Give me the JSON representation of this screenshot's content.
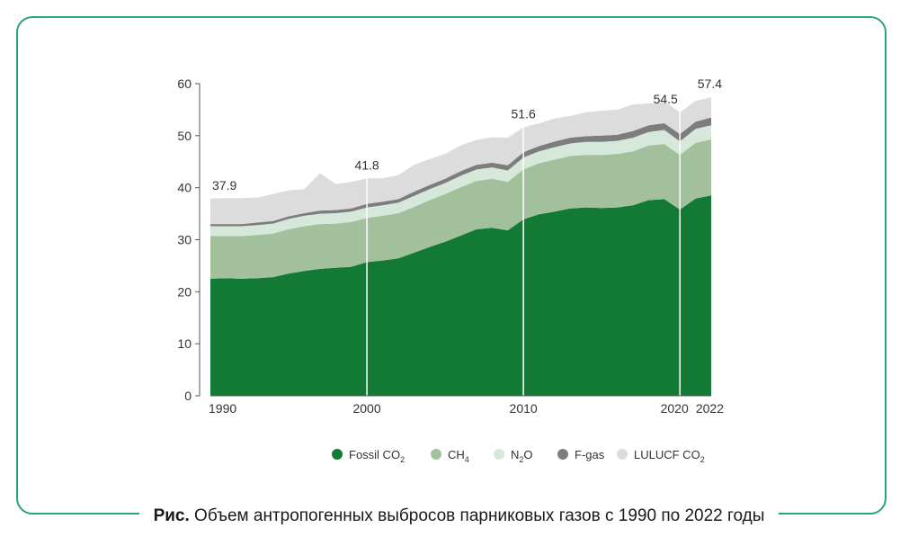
{
  "caption": {
    "prefix": "Рис.",
    "text": " Объем антропогенных выбросов парниковых газов с 1990 по 2022 годы"
  },
  "chart_data": {
    "type": "area",
    "stacked": true,
    "title": "",
    "xlabel": "",
    "ylabel": "",
    "ylim": [
      0,
      60
    ],
    "yticks": [
      0,
      10,
      20,
      30,
      40,
      50,
      60
    ],
    "xticks": [
      1990,
      2000,
      2010,
      2020,
      2022
    ],
    "x": [
      1990,
      1991,
      1992,
      1993,
      1994,
      1995,
      1996,
      1997,
      1998,
      1999,
      2000,
      2001,
      2002,
      2003,
      2004,
      2005,
      2006,
      2007,
      2008,
      2009,
      2010,
      2011,
      2012,
      2013,
      2014,
      2015,
      2016,
      2017,
      2018,
      2019,
      2020,
      2021,
      2022
    ],
    "series": [
      {
        "name": "Fossil CO",
        "sub": "2",
        "color": "#127a35",
        "values": [
          22.5,
          22.6,
          22.5,
          22.6,
          22.8,
          23.5,
          24.0,
          24.4,
          24.6,
          24.8,
          25.7,
          26.0,
          26.4,
          27.5,
          28.6,
          29.6,
          30.8,
          32.0,
          32.3,
          31.8,
          33.9,
          34.9,
          35.4,
          36.0,
          36.2,
          36.1,
          36.2,
          36.6,
          37.6,
          37.8,
          35.8,
          37.9,
          38.5
        ]
      },
      {
        "name": "CH",
        "sub": "4",
        "color": "#a3c09c",
        "values": [
          8.2,
          8.1,
          8.2,
          8.3,
          8.4,
          8.5,
          8.6,
          8.6,
          8.5,
          8.6,
          8.5,
          8.6,
          8.7,
          8.8,
          9.0,
          9.2,
          9.3,
          9.3,
          9.4,
          9.3,
          9.6,
          9.8,
          10.0,
          10.1,
          10.1,
          10.2,
          10.3,
          10.4,
          10.5,
          10.6,
          10.5,
          10.7,
          10.8
        ]
      },
      {
        "name": "N",
        "sub": "2",
        "suffix": "O",
        "color": "#d6e8d9",
        "values": [
          1.9,
          1.9,
          1.9,
          1.9,
          1.9,
          2.0,
          2.0,
          2.0,
          2.0,
          2.0,
          2.0,
          2.0,
          2.0,
          2.1,
          2.1,
          2.1,
          2.2,
          2.2,
          2.2,
          2.2,
          2.3,
          2.3,
          2.4,
          2.4,
          2.5,
          2.5,
          2.5,
          2.6,
          2.6,
          2.7,
          2.6,
          2.7,
          2.7
        ]
      },
      {
        "name": "F-gas",
        "color": "#7d7d7d",
        "values": [
          0.4,
          0.4,
          0.4,
          0.5,
          0.5,
          0.5,
          0.5,
          0.6,
          0.6,
          0.6,
          0.7,
          0.7,
          0.7,
          0.8,
          0.8,
          0.8,
          0.9,
          0.9,
          0.9,
          1.0,
          1.0,
          1.0,
          1.1,
          1.1,
          1.1,
          1.2,
          1.2,
          1.3,
          1.3,
          1.3,
          1.4,
          1.4,
          1.5
        ]
      },
      {
        "name": "LULUCF CO",
        "sub": "2",
        "color": "#dcdcdc",
        "values": [
          4.9,
          5.0,
          5.0,
          4.8,
          5.2,
          5.0,
          4.6,
          7.2,
          5.0,
          5.1,
          4.9,
          4.5,
          4.6,
          5.2,
          5.0,
          4.8,
          4.9,
          4.8,
          4.9,
          5.3,
          4.8,
          4.4,
          4.4,
          4.2,
          4.6,
          4.8,
          4.8,
          5.1,
          4.2,
          4.2,
          4.2,
          4.0,
          3.9
        ]
      }
    ],
    "annotations": [
      {
        "year": 1990,
        "label": "37.9",
        "vline": false
      },
      {
        "year": 2000,
        "label": "41.8",
        "vline": true
      },
      {
        "year": 2010,
        "label": "51.6",
        "vline": true
      },
      {
        "year": 2020,
        "label": "54.5",
        "vline": true
      },
      {
        "year": 2022,
        "label": "57.4",
        "vline": false
      }
    ],
    "legend_position": "bottom"
  }
}
